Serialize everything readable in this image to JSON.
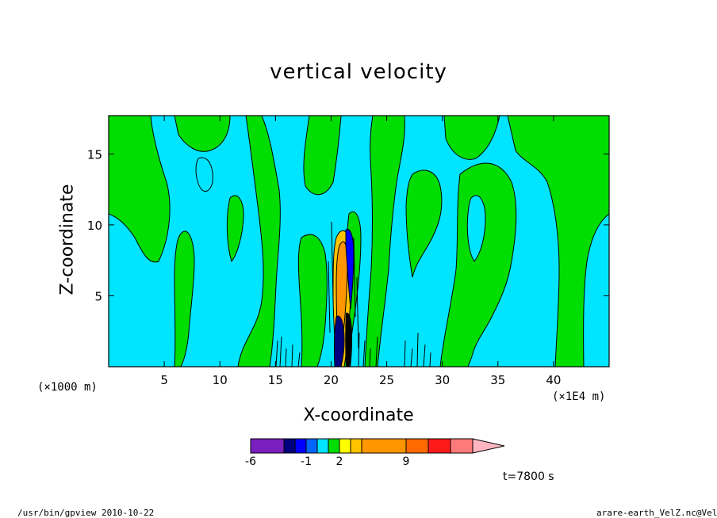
{
  "chart_data": {
    "type": "heatmap",
    "title": "vertical velocity",
    "xlabel": "X-coordinate",
    "ylabel": "Z-coordinate",
    "x_unit_left": "(×1000 m)",
    "x_unit_right": "(×1E4 m)",
    "xlim": [
      0,
      45
    ],
    "ylim": [
      0,
      17.7
    ],
    "x_ticks": [
      5,
      10,
      15,
      20,
      25,
      30,
      35,
      40
    ],
    "y_ticks": [
      5,
      10,
      15
    ],
    "colorbar": {
      "colors": [
        "#7a1fc0",
        "#00007f",
        "#0000ff",
        "#0066ff",
        "#00e5ff",
        "#00dd00",
        "#ffff00",
        "#ffc400",
        "#ff9600",
        "#ff6a00",
        "#ff1a1a",
        "#ff7a7a",
        "#ffb6c1"
      ],
      "labels": [
        "-6",
        "-1",
        "2",
        "9"
      ]
    },
    "annotation": "t=7800 s"
  },
  "footer": {
    "left": "/usr/bin/gpview  2010-10-22",
    "right": "arare-earth_VelZ.nc@VelZ"
  }
}
